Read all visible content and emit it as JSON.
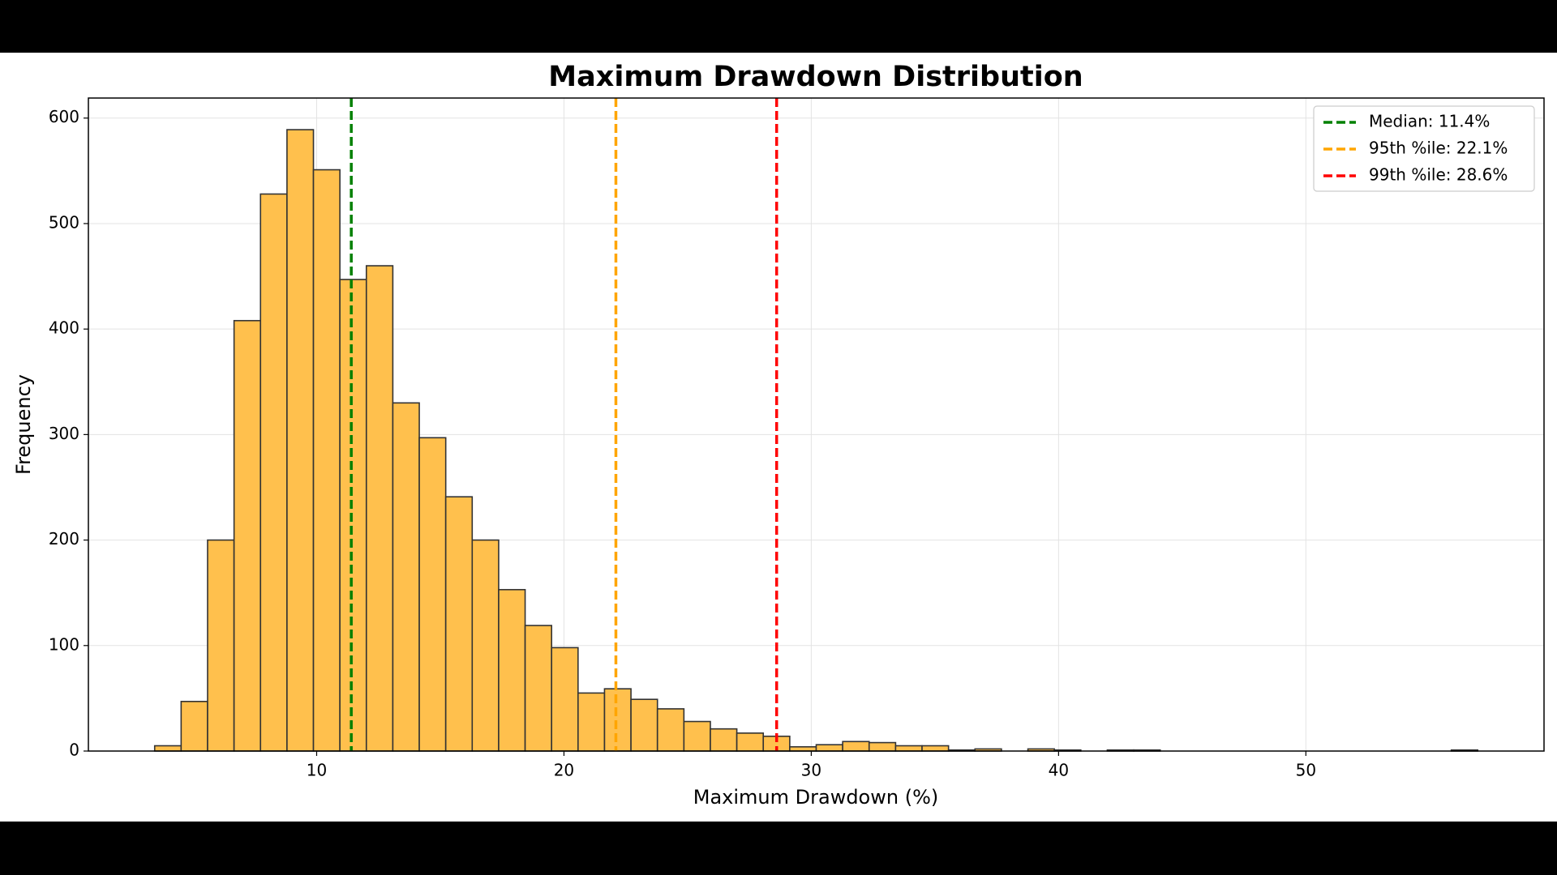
{
  "chart_data": {
    "type": "histogram",
    "title": "Maximum Drawdown Distribution",
    "x_label": "Maximum Drawdown (%)",
    "y_label": "Frequency",
    "bins": [
      3.45,
      4.52,
      5.59,
      6.66,
      7.73,
      8.8,
      9.87,
      10.94,
      12.01,
      13.08,
      14.15,
      15.22,
      16.29,
      17.36,
      18.43,
      19.5,
      20.57,
      21.64,
      22.71,
      23.78,
      24.85,
      25.92,
      26.99,
      28.06,
      29.13,
      30.2,
      31.27,
      32.34,
      33.41,
      34.48,
      35.55,
      36.62,
      37.69,
      38.76,
      39.83,
      40.9,
      41.97,
      43.04,
      44.11,
      45.18,
      46.25,
      47.32,
      48.39,
      49.46,
      50.53,
      51.6,
      52.67,
      53.74,
      54.81,
      55.88,
      56.95
    ],
    "counts": [
      5,
      47,
      200,
      408,
      528,
      589,
      551,
      447,
      460,
      330,
      297,
      241,
      200,
      153,
      119,
      98,
      55,
      59,
      49,
      40,
      28,
      21,
      17,
      14,
      4,
      6,
      9,
      8,
      5,
      5,
      1,
      2,
      0,
      2,
      1,
      0,
      1,
      1,
      0,
      0,
      0,
      0,
      0,
      0,
      0,
      0,
      0,
      0,
      0,
      1
    ],
    "color": "#ffc04d",
    "edgecolor": "#333333",
    "xlim": [
      0.77,
      59.63
    ],
    "xticks": [
      10,
      20,
      30,
      40,
      50
    ],
    "ylim": [
      0,
      619
    ],
    "yticks": [
      0,
      100,
      200,
      300,
      400,
      500,
      600
    ],
    "grid": true,
    "legend": "upper right",
    "vlines": [
      {
        "name": "Median: 11.4%",
        "value": 11.4,
        "color": "#008000"
      },
      {
        "name": "95th %ile: 22.1%",
        "value": 22.1,
        "color": "#ffa500"
      },
      {
        "name": "99th %ile: 28.6%",
        "value": 28.6,
        "color": "#ff0000"
      }
    ]
  }
}
